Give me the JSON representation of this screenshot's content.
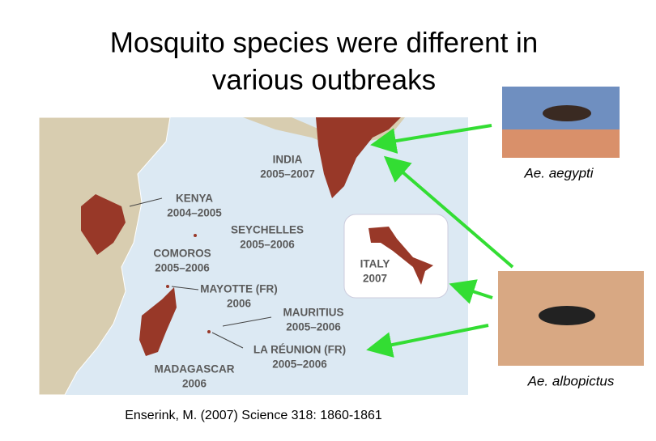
{
  "title": [
    "Mosquito species were different in",
    "various outbreaks"
  ],
  "map": {
    "regions": [
      {
        "name": "INDIA",
        "years": "2005–2007"
      },
      {
        "name": "KENYA",
        "years": "2004–2005"
      },
      {
        "name": "SEYCHELLES",
        "years": "2005–2006"
      },
      {
        "name": "COMOROS",
        "years": "2005–2006"
      },
      {
        "name": "MAYOTTE (FR)",
        "years": "2006"
      },
      {
        "name": "MAURITIUS",
        "years": "2005–2006"
      },
      {
        "name": "LA RÉUNION (FR)",
        "years": "2005–2006"
      },
      {
        "name": "MADAGASCAR",
        "years": "2006"
      },
      {
        "name": "ITALY",
        "years": "2007"
      }
    ]
  },
  "photos": [
    {
      "caption": "Ae. aegypti"
    },
    {
      "caption": "Ae. albopictus"
    }
  ],
  "citation": "Enserink, M. (2007) Science 318: 1860-1861"
}
